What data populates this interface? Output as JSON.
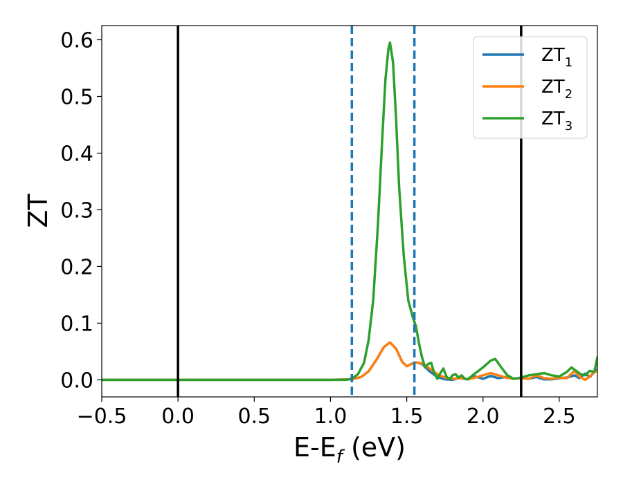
{
  "chart_data": {
    "type": "line",
    "xlabel": "E-E_f (eV)",
    "xlabel_parts": {
      "base": "E-E",
      "sub": "f",
      "unit": " (eV)"
    },
    "ylabel": "ZT",
    "xlim": [
      -0.5,
      2.75
    ],
    "ylim": [
      -0.03,
      0.625
    ],
    "x_ticks": [
      -0.5,
      0.0,
      0.5,
      1.0,
      1.5,
      2.0,
      2.5
    ],
    "x_tick_labels": [
      "−0.5",
      "0.0",
      "0.5",
      "1.0",
      "1.5",
      "2.0",
      "2.5"
    ],
    "y_ticks": [
      0.0,
      0.1,
      0.2,
      0.3,
      0.4,
      0.5,
      0.6
    ],
    "y_tick_labels": [
      "0.0",
      "0.1",
      "0.2",
      "0.3",
      "0.4",
      "0.5",
      "0.6"
    ],
    "grid": false,
    "legend_position": "top-right",
    "vertical_lines": [
      {
        "x": 0.0,
        "style": "solid",
        "color": "#000000"
      },
      {
        "x": 1.14,
        "style": "dashed",
        "color": "#1f77b4"
      },
      {
        "x": 1.55,
        "style": "dashed",
        "color": "#1f77b4"
      },
      {
        "x": 2.25,
        "style": "solid",
        "color": "#000000"
      }
    ],
    "series": [
      {
        "name": "ZT_1",
        "label_parts": {
          "base": "ZT",
          "sub": "1"
        },
        "color": "#1f77b4",
        "x": [
          -0.5,
          1.0,
          1.14,
          1.2,
          1.25,
          1.3,
          1.35,
          1.39,
          1.43,
          1.47,
          1.5,
          1.53,
          1.56,
          1.6,
          1.65,
          1.7,
          1.75,
          1.8,
          1.85,
          1.9,
          1.95,
          2.0,
          2.05,
          2.1,
          2.15,
          2.2,
          2.25,
          2.3,
          2.35,
          2.4,
          2.45,
          2.5,
          2.55,
          2.6,
          2.63,
          2.67,
          2.7,
          2.73,
          2.75
        ],
        "y": [
          0.0,
          0.0,
          0.001,
          0.005,
          0.015,
          0.035,
          0.058,
          0.066,
          0.055,
          0.032,
          0.024,
          0.028,
          0.031,
          0.028,
          0.015,
          0.005,
          0.001,
          0.0,
          0.004,
          0.001,
          0.006,
          0.002,
          0.007,
          0.003,
          0.005,
          0.002,
          0.003,
          0.002,
          0.005,
          0.001,
          0.001,
          0.003,
          0.004,
          0.008,
          0.003,
          0.011,
          0.005,
          0.014,
          0.018
        ]
      },
      {
        "name": "ZT_2",
        "label_parts": {
          "base": "ZT",
          "sub": "2"
        },
        "color": "#ff7f0e",
        "x": [
          -0.5,
          1.0,
          1.14,
          1.2,
          1.25,
          1.3,
          1.35,
          1.39,
          1.43,
          1.47,
          1.5,
          1.53,
          1.56,
          1.6,
          1.65,
          1.7,
          1.75,
          1.8,
          1.85,
          1.9,
          1.95,
          2.0,
          2.05,
          2.1,
          2.15,
          2.2,
          2.25,
          2.3,
          2.35,
          2.4,
          2.45,
          2.5,
          2.55,
          2.6,
          2.63,
          2.67,
          2.7,
          2.73,
          2.75
        ],
        "y": [
          0.0,
          0.0,
          0.001,
          0.005,
          0.015,
          0.035,
          0.058,
          0.066,
          0.055,
          0.032,
          0.024,
          0.028,
          0.031,
          0.029,
          0.02,
          0.01,
          0.004,
          0.002,
          0.003,
          0.001,
          0.004,
          0.008,
          0.012,
          0.008,
          0.004,
          0.002,
          0.003,
          0.002,
          0.008,
          0.003,
          0.002,
          0.004,
          0.003,
          0.016,
          0.006,
          0.0,
          0.006,
          0.014,
          0.016
        ]
      },
      {
        "name": "ZT_3",
        "label_parts": {
          "base": "ZT",
          "sub": "3"
        },
        "color": "#2ca02c",
        "x": [
          -0.5,
          1.0,
          1.1,
          1.14,
          1.18,
          1.22,
          1.25,
          1.28,
          1.31,
          1.34,
          1.36,
          1.38,
          1.39,
          1.41,
          1.43,
          1.45,
          1.48,
          1.51,
          1.54,
          1.56,
          1.58,
          1.6,
          1.62,
          1.64,
          1.66,
          1.68,
          1.7,
          1.72,
          1.74,
          1.76,
          1.78,
          1.8,
          1.82,
          1.84,
          1.86,
          1.88,
          1.9,
          1.95,
          2.0,
          2.05,
          2.08,
          2.12,
          2.16,
          2.2,
          2.25,
          2.3,
          2.35,
          2.4,
          2.45,
          2.5,
          2.55,
          2.58,
          2.61,
          2.64,
          2.67,
          2.7,
          2.73,
          2.75
        ],
        "y": [
          0.0,
          0.0,
          0.0,
          0.002,
          0.01,
          0.03,
          0.07,
          0.14,
          0.27,
          0.43,
          0.53,
          0.585,
          0.595,
          0.56,
          0.46,
          0.34,
          0.22,
          0.14,
          0.11,
          0.095,
          0.065,
          0.04,
          0.022,
          0.028,
          0.03,
          0.012,
          0.002,
          0.012,
          0.02,
          0.006,
          0.001,
          0.008,
          0.01,
          0.004,
          0.008,
          0.002,
          0.001,
          0.012,
          0.022,
          0.034,
          0.037,
          0.022,
          0.008,
          0.002,
          0.004,
          0.008,
          0.01,
          0.012,
          0.008,
          0.006,
          0.014,
          0.022,
          0.016,
          0.01,
          0.008,
          0.016,
          0.014,
          0.04
        ]
      }
    ]
  }
}
